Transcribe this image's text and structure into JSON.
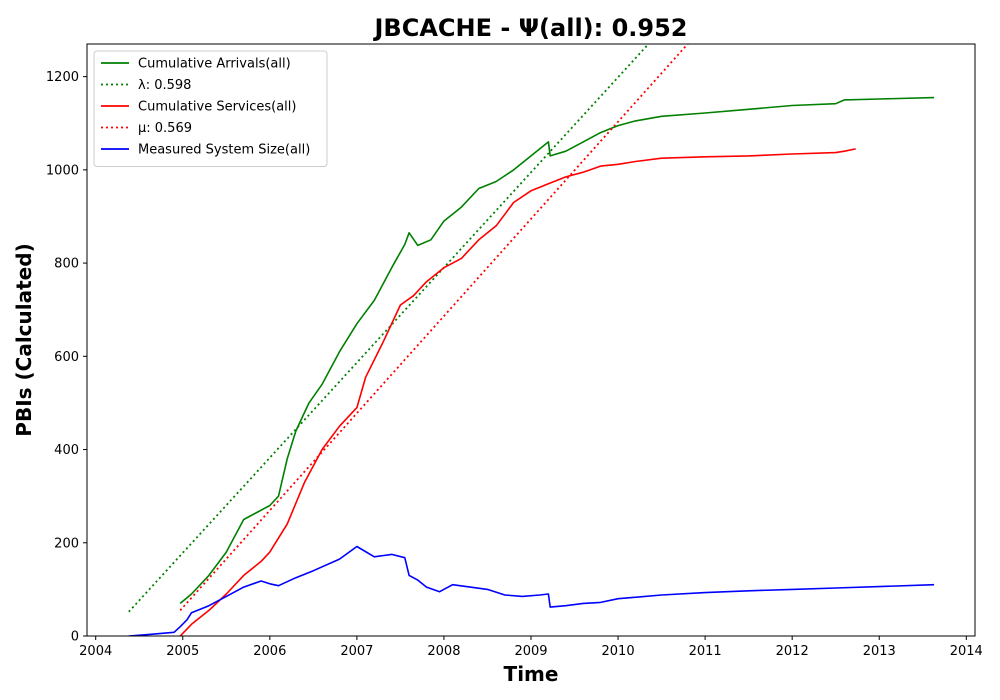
{
  "chart_data": {
    "type": "line",
    "title": "JBCACHE -  Ψ(all): 0.952",
    "xlabel": "Time",
    "ylabel": "PBIs (Calculated)",
    "xlim": [
      2003.9,
      2014.1
    ],
    "ylim": [
      0,
      1270
    ],
    "xticks": [
      2004,
      2005,
      2006,
      2007,
      2008,
      2009,
      2010,
      2011,
      2012,
      2013,
      2014
    ],
    "yticks": [
      0,
      200,
      400,
      600,
      800,
      1000,
      1200
    ],
    "grid": false,
    "legend_position": "top-left",
    "series": [
      {
        "name": "Cumulative Arrivals(all)",
        "style": "solid",
        "color": "#008000",
        "x": [
          2004.97,
          2005.1,
          2005.3,
          2005.5,
          2005.7,
          2005.85,
          2006.0,
          2006.1,
          2006.2,
          2006.3,
          2006.45,
          2006.6,
          2006.8,
          2007.0,
          2007.2,
          2007.4,
          2007.55,
          2007.6,
          2007.7,
          2007.85,
          2008.0,
          2008.2,
          2008.4,
          2008.6,
          2008.8,
          2009.0,
          2009.2,
          2009.22,
          2009.4,
          2009.6,
          2009.8,
          2010.0,
          2010.2,
          2010.5,
          2011.0,
          2011.5,
          2012.0,
          2012.5,
          2012.6,
          2013.0,
          2013.63
        ],
        "y": [
          70,
          90,
          130,
          180,
          250,
          265,
          280,
          300,
          380,
          440,
          500,
          540,
          610,
          670,
          720,
          790,
          840,
          865,
          838,
          850,
          890,
          920,
          960,
          975,
          1000,
          1030,
          1060,
          1030,
          1040,
          1060,
          1080,
          1095,
          1105,
          1115,
          1122,
          1130,
          1138,
          1142,
          1150,
          1152,
          1155
        ]
      },
      {
        "name": "λ: 0.598",
        "style": "dotted",
        "color": "#008000",
        "x": [
          2004.38,
          2010.35
        ],
        "y": [
          52,
          1270
        ]
      },
      {
        "name": "Cumulative Services(all)",
        "style": "solid",
        "color": "#ff0000",
        "x": [
          2004.97,
          2005.1,
          2005.3,
          2005.5,
          2005.7,
          2005.9,
          2006.0,
          2006.2,
          2006.4,
          2006.6,
          2006.8,
          2007.0,
          2007.1,
          2007.3,
          2007.5,
          2007.65,
          2007.8,
          2008.0,
          2008.2,
          2008.4,
          2008.6,
          2008.8,
          2009.0,
          2009.2,
          2009.4,
          2009.6,
          2009.8,
          2010.0,
          2010.2,
          2010.5,
          2011.0,
          2011.5,
          2012.0,
          2012.5,
          2012.6,
          2012.73
        ],
        "y": [
          0,
          25,
          55,
          90,
          130,
          160,
          180,
          240,
          330,
          400,
          450,
          490,
          555,
          630,
          710,
          730,
          760,
          790,
          810,
          850,
          880,
          930,
          955,
          970,
          985,
          995,
          1008,
          1012,
          1018,
          1025,
          1028,
          1030,
          1034,
          1037,
          1040,
          1045
        ]
      },
      {
        "name": "μ: 0.569",
        "style": "dotted",
        "color": "#ff0000",
        "x": [
          2004.97,
          2010.8
        ],
        "y": [
          55,
          1270
        ]
      },
      {
        "name": "Measured System Size(all)",
        "style": "solid",
        "color": "#0000ff",
        "x": [
          2004.38,
          2004.6,
          2004.9,
          2004.97,
          2005.05,
          2005.1,
          2005.3,
          2005.5,
          2005.7,
          2005.9,
          2006.0,
          2006.1,
          2006.3,
          2006.5,
          2006.8,
          2007.0,
          2007.2,
          2007.4,
          2007.55,
          2007.6,
          2007.7,
          2007.8,
          2007.95,
          2008.1,
          2008.3,
          2008.5,
          2008.7,
          2008.9,
          2009.1,
          2009.2,
          2009.22,
          2009.4,
          2009.6,
          2009.8,
          2010.0,
          2010.5,
          2011.0,
          2011.5,
          2012.0,
          2012.5,
          2013.0,
          2013.63
        ],
        "y": [
          0,
          3,
          8,
          20,
          35,
          50,
          65,
          85,
          105,
          118,
          112,
          108,
          125,
          140,
          165,
          192,
          170,
          175,
          168,
          130,
          120,
          105,
          95,
          110,
          105,
          100,
          88,
          85,
          88,
          90,
          62,
          65,
          70,
          72,
          80,
          88,
          93,
          97,
          100,
          103,
          106,
          110
        ]
      }
    ]
  }
}
